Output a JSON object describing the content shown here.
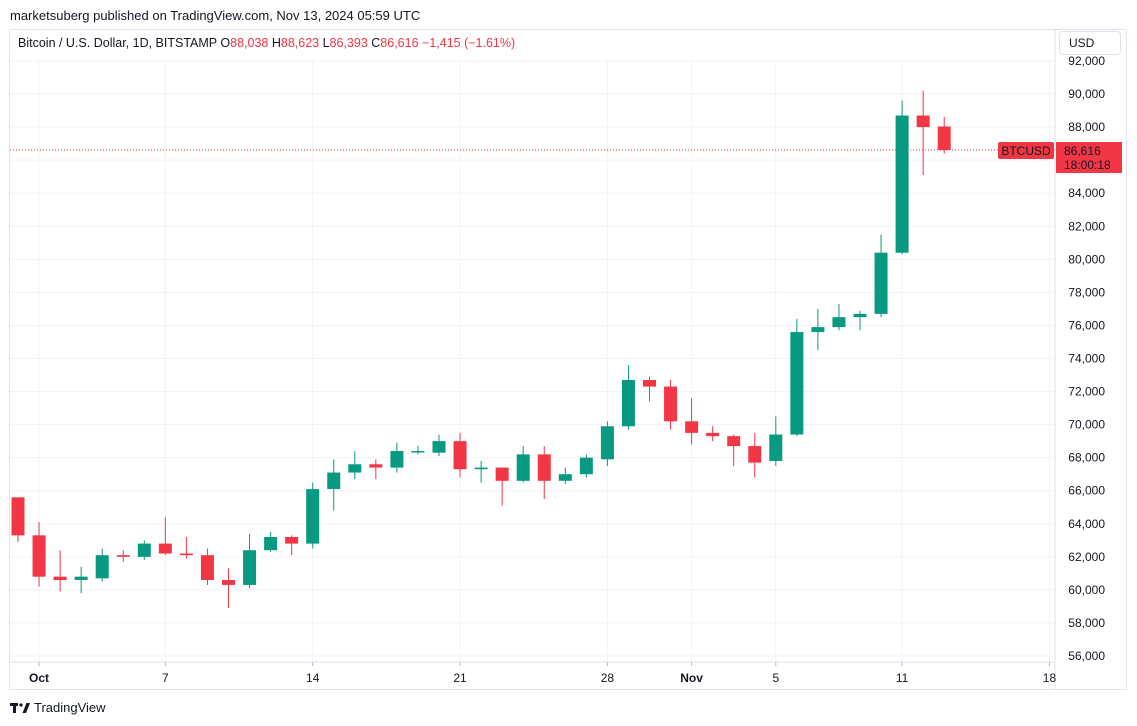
{
  "publisher": "marketsuberg published on TradingView.com, Nov 13, 2024 05:59 UTC",
  "legend": {
    "symbol": "Bitcoin / U.S. Dollar, 1D, BITSTAMP",
    "o_label": "O",
    "o_value": "88,038",
    "h_label": "H",
    "h_value": "88,623",
    "l_label": "L",
    "l_value": "86,393",
    "c_label": "C",
    "c_value": "86,616",
    "change": "−1,415 (−1.61%)"
  },
  "currency_button": "USD",
  "price_label": {
    "symbol": "BTCUSD",
    "price": "86,616",
    "countdown": "18:00:18"
  },
  "footer": {
    "brand": "TradingView"
  },
  "colors": {
    "up": "#089981",
    "down": "#f23645",
    "grid": "#f0f3fa",
    "lastline": "#f23645"
  },
  "chart_data": {
    "type": "candlestick",
    "y_ticks": [
      "56,000",
      "58,000",
      "60,000",
      "62,000",
      "64,000",
      "66,000",
      "68,000",
      "70,000",
      "72,000",
      "74,000",
      "76,000",
      "78,000",
      "80,000",
      "82,000",
      "84,000",
      "86,000",
      "88,000",
      "90,000",
      "92,000"
    ],
    "y_values": [
      56000,
      58000,
      60000,
      62000,
      64000,
      66000,
      68000,
      70000,
      72000,
      74000,
      76000,
      78000,
      80000,
      82000,
      84000,
      86000,
      88000,
      90000,
      92000
    ],
    "ylim": [
      55500,
      92200
    ],
    "x_ticks": [
      {
        "label": "Oct",
        "index": 1,
        "bold": true
      },
      {
        "label": "7",
        "index": 7,
        "bold": false
      },
      {
        "label": "14",
        "index": 14,
        "bold": false
      },
      {
        "label": "21",
        "index": 21,
        "bold": false
      },
      {
        "label": "28",
        "index": 28,
        "bold": false
      },
      {
        "label": "Nov",
        "index": 32,
        "bold": true
      },
      {
        "label": "5",
        "index": 36,
        "bold": false
      },
      {
        "label": "11",
        "index": 42,
        "bold": false
      },
      {
        "label": "18",
        "index": 49,
        "bold": false
      }
    ],
    "last_price": 86616,
    "candles": [
      {
        "date": "2024-09-30",
        "o": 65600,
        "h": 65600,
        "l": 62900,
        "c": 63300
      },
      {
        "date": "2024-10-01",
        "o": 63300,
        "h": 64100,
        "l": 60200,
        "c": 60800
      },
      {
        "date": "2024-10-02",
        "o": 60800,
        "h": 62400,
        "l": 59900,
        "c": 60600
      },
      {
        "date": "2024-10-03",
        "o": 60600,
        "h": 61400,
        "l": 59800,
        "c": 60800
      },
      {
        "date": "2024-10-04",
        "o": 60700,
        "h": 62500,
        "l": 60500,
        "c": 62100
      },
      {
        "date": "2024-10-05",
        "o": 62100,
        "h": 62400,
        "l": 61700,
        "c": 62000
      },
      {
        "date": "2024-10-06",
        "o": 62000,
        "h": 63000,
        "l": 61800,
        "c": 62800
      },
      {
        "date": "2024-10-07",
        "o": 62800,
        "h": 64400,
        "l": 62100,
        "c": 62200
      },
      {
        "date": "2024-10-08",
        "o": 62200,
        "h": 63200,
        "l": 61900,
        "c": 62100
      },
      {
        "date": "2024-10-09",
        "o": 62100,
        "h": 62500,
        "l": 60300,
        "c": 60600
      },
      {
        "date": "2024-10-10",
        "o": 60600,
        "h": 61300,
        "l": 58900,
        "c": 60300
      },
      {
        "date": "2024-10-11",
        "o": 60300,
        "h": 63400,
        "l": 60100,
        "c": 62400
      },
      {
        "date": "2024-10-12",
        "o": 62400,
        "h": 63500,
        "l": 62300,
        "c": 63200
      },
      {
        "date": "2024-10-13",
        "o": 63200,
        "h": 63300,
        "l": 62100,
        "c": 62800
      },
      {
        "date": "2024-10-14",
        "o": 62800,
        "h": 66500,
        "l": 62500,
        "c": 66100
      },
      {
        "date": "2024-10-15",
        "o": 66100,
        "h": 67900,
        "l": 64800,
        "c": 67100
      },
      {
        "date": "2024-10-16",
        "o": 67100,
        "h": 68400,
        "l": 66700,
        "c": 67600
      },
      {
        "date": "2024-10-17",
        "o": 67600,
        "h": 67900,
        "l": 66700,
        "c": 67400
      },
      {
        "date": "2024-10-18",
        "o": 67400,
        "h": 68900,
        "l": 67100,
        "c": 68400
      },
      {
        "date": "2024-10-19",
        "o": 68400,
        "h": 68700,
        "l": 68200,
        "c": 68400
      },
      {
        "date": "2024-10-20",
        "o": 68300,
        "h": 69400,
        "l": 68100,
        "c": 69000
      },
      {
        "date": "2024-10-21",
        "o": 69000,
        "h": 69500,
        "l": 66800,
        "c": 67300
      },
      {
        "date": "2024-10-22",
        "o": 67300,
        "h": 67800,
        "l": 66500,
        "c": 67400
      },
      {
        "date": "2024-10-23",
        "o": 67400,
        "h": 67400,
        "l": 65100,
        "c": 66600
      },
      {
        "date": "2024-10-24",
        "o": 66600,
        "h": 68700,
        "l": 66500,
        "c": 68200
      },
      {
        "date": "2024-10-25",
        "o": 68200,
        "h": 68700,
        "l": 65500,
        "c": 66600
      },
      {
        "date": "2024-10-26",
        "o": 66600,
        "h": 67400,
        "l": 66400,
        "c": 67000
      },
      {
        "date": "2024-10-27",
        "o": 67000,
        "h": 68200,
        "l": 66800,
        "c": 68000
      },
      {
        "date": "2024-10-28",
        "o": 67900,
        "h": 70200,
        "l": 67500,
        "c": 69900
      },
      {
        "date": "2024-10-29",
        "o": 69900,
        "h": 73600,
        "l": 69700,
        "c": 72700
      },
      {
        "date": "2024-10-30",
        "o": 72700,
        "h": 72900,
        "l": 71400,
        "c": 72300
      },
      {
        "date": "2024-10-31",
        "o": 72300,
        "h": 72700,
        "l": 69700,
        "c": 70200
      },
      {
        "date": "2024-11-01",
        "o": 70200,
        "h": 71600,
        "l": 68800,
        "c": 69500
      },
      {
        "date": "2024-11-02",
        "o": 69500,
        "h": 69900,
        "l": 69000,
        "c": 69300
      },
      {
        "date": "2024-11-03",
        "o": 69300,
        "h": 69400,
        "l": 67500,
        "c": 68700
      },
      {
        "date": "2024-11-04",
        "o": 68700,
        "h": 69500,
        "l": 66800,
        "c": 67700
      },
      {
        "date": "2024-11-05",
        "o": 67800,
        "h": 70500,
        "l": 67500,
        "c": 69400
      },
      {
        "date": "2024-11-06",
        "o": 69400,
        "h": 76400,
        "l": 69300,
        "c": 75600
      },
      {
        "date": "2024-11-07",
        "o": 75600,
        "h": 77000,
        "l": 74500,
        "c": 75900
      },
      {
        "date": "2024-11-08",
        "o": 75900,
        "h": 77300,
        "l": 75700,
        "c": 76500
      },
      {
        "date": "2024-11-09",
        "o": 76500,
        "h": 76900,
        "l": 75700,
        "c": 76700
      },
      {
        "date": "2024-11-10",
        "o": 76700,
        "h": 81500,
        "l": 76500,
        "c": 80400
      },
      {
        "date": "2024-11-11",
        "o": 80400,
        "h": 89600,
        "l": 80300,
        "c": 88700
      },
      {
        "date": "2024-11-12",
        "o": 88700,
        "h": 90200,
        "l": 85100,
        "c": 88000
      },
      {
        "date": "2024-11-13",
        "o": 88038,
        "h": 88623,
        "l": 86393,
        "c": 86616
      }
    ]
  }
}
